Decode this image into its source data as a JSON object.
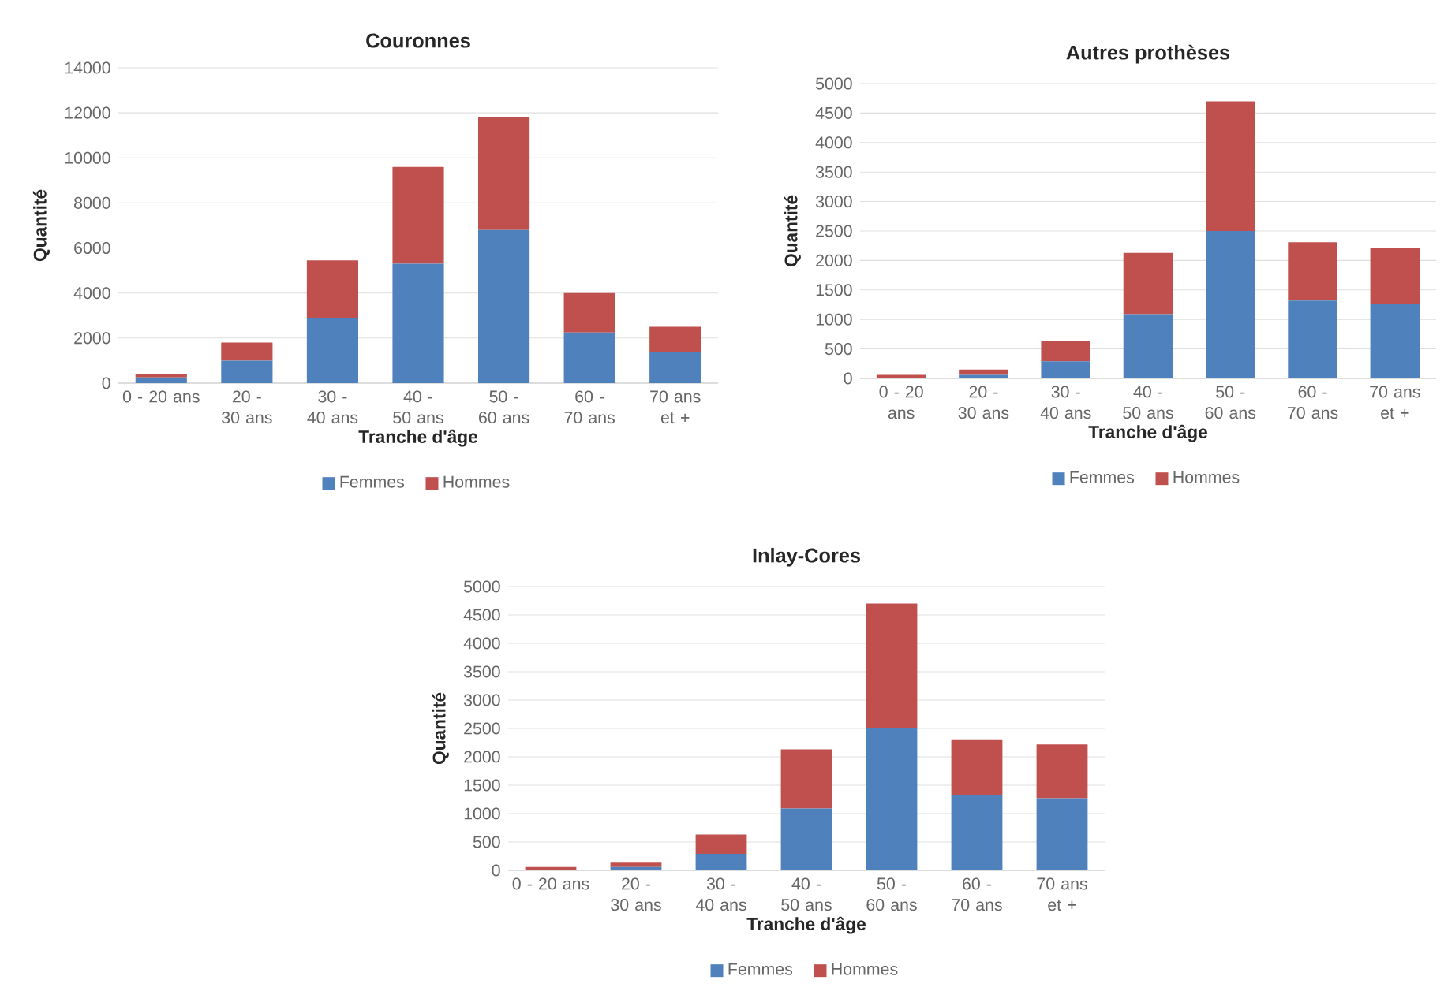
{
  "chart_data": [
    {
      "type": "bar",
      "stacked": true,
      "title": "Couronnes",
      "xlabel": "Tranche d'âge",
      "ylabel": "Quantité",
      "categories": [
        "0 - 20 ans",
        "20 - 30 ans",
        "30 - 40 ans",
        "40 - 50 ans",
        "50 - 60 ans",
        "60 - 70 ans",
        "70 ans et +"
      ],
      "series": [
        {
          "name": "Femmes",
          "color": "#4f81bd",
          "values": [
            250,
            1000,
            2900,
            5300,
            6800,
            2250,
            1400
          ]
        },
        {
          "name": "Hommes",
          "color": "#c0504d",
          "values": [
            150,
            800,
            2550,
            4300,
            5000,
            1750,
            1100
          ]
        }
      ],
      "ylim": [
        0,
        14000
      ],
      "yticks": [
        0,
        2000,
        4000,
        6000,
        8000,
        10000,
        12000,
        14000
      ],
      "grid": "y",
      "legend": "bottom"
    },
    {
      "type": "bar",
      "stacked": true,
      "title": "Autres prothèses",
      "xlabel": "Tranche d'âge",
      "ylabel": "Quantité",
      "categories": [
        "0 - 20 ans",
        "20 - 30 ans",
        "30 - 40 ans",
        "40 - 50 ans",
        "50 - 60 ans",
        "60 - 70 ans",
        "70 ans et +"
      ],
      "series": [
        {
          "name": "Femmes",
          "color": "#4f81bd",
          "values": [
            10,
            60,
            290,
            1090,
            2500,
            1320,
            1270
          ]
        },
        {
          "name": "Hommes",
          "color": "#c0504d",
          "values": [
            50,
            90,
            340,
            1040,
            2200,
            990,
            950
          ]
        }
      ],
      "ylim": [
        0,
        5000
      ],
      "yticks": [
        0,
        500,
        1000,
        1500,
        2000,
        2500,
        3000,
        3500,
        4000,
        4500,
        5000
      ],
      "grid": "y",
      "legend": "bottom"
    },
    {
      "type": "bar",
      "stacked": true,
      "title": "Inlay-Cores",
      "xlabel": "Tranche d'âge",
      "ylabel": "Quantité",
      "categories": [
        "0 - 20 ans",
        "20 - 30 ans",
        "30 - 40 ans",
        "40 - 50 ans",
        "50 - 60 ans",
        "60 - 70 ans",
        "70 ans et +"
      ],
      "series": [
        {
          "name": "Femmes",
          "color": "#4f81bd",
          "values": [
            10,
            60,
            290,
            1090,
            2500,
            1320,
            1270
          ]
        },
        {
          "name": "Hommes",
          "color": "#c0504d",
          "values": [
            50,
            90,
            340,
            1040,
            2200,
            990,
            950
          ]
        }
      ],
      "ylim": [
        0,
        5000
      ],
      "yticks": [
        0,
        500,
        1000,
        1500,
        2000,
        2500,
        3000,
        3500,
        4000,
        4500,
        5000
      ],
      "grid": "y",
      "legend": "bottom"
    }
  ]
}
